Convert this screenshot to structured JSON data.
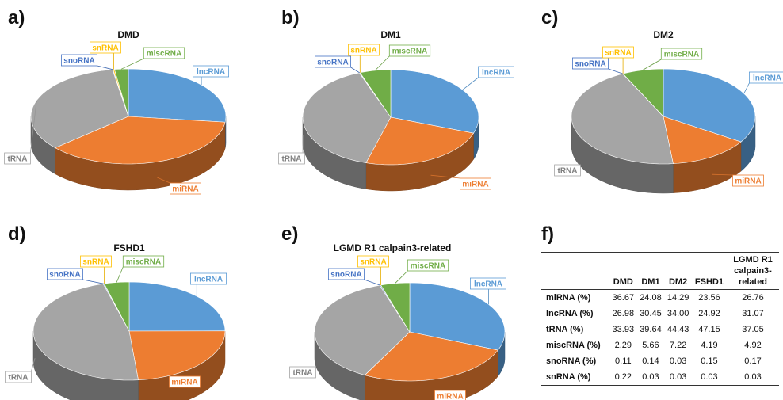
{
  "panel_letters": [
    "a)",
    "b)",
    "c)",
    "d)",
    "e)",
    "f)"
  ],
  "colors": {
    "miRNA": "#ed7d31",
    "lncRNA": "#5b9bd5",
    "tRNA": "#a5a5a5",
    "miscRNA": "#70ad47",
    "snoRNA": "#4472c4",
    "snRNA": "#ffc000"
  },
  "chart_data": [
    {
      "type": "pie",
      "title": "DMD",
      "categories": [
        "miRNA",
        "lncRNA",
        "tRNA",
        "miscRNA",
        "snoRNA",
        "snRNA"
      ],
      "values": [
        36.67,
        26.98,
        33.93,
        2.29,
        0.11,
        0.22
      ]
    },
    {
      "type": "pie",
      "title": "DM1",
      "categories": [
        "miRNA",
        "lncRNA",
        "tRNA",
        "miscRNA",
        "snoRNA",
        "snRNA"
      ],
      "values": [
        24.08,
        30.45,
        39.64,
        5.66,
        0.14,
        0.03
      ]
    },
    {
      "type": "pie",
      "title": "DM2",
      "categories": [
        "miRNA",
        "lncRNA",
        "tRNA",
        "miscRNA",
        "snoRNA",
        "snRNA"
      ],
      "values": [
        14.29,
        34.0,
        44.43,
        7.22,
        0.03,
        0.03
      ]
    },
    {
      "type": "pie",
      "title": "FSHD1",
      "categories": [
        "miRNA",
        "lncRNA",
        "tRNA",
        "miscRNA",
        "snoRNA",
        "snRNA"
      ],
      "values": [
        23.56,
        24.92,
        47.15,
        4.19,
        0.15,
        0.03
      ]
    },
    {
      "type": "pie",
      "title": "LGMD R1 calpain3-related",
      "categories": [
        "miRNA",
        "lncRNA",
        "tRNA",
        "miscRNA",
        "snoRNA",
        "snRNA"
      ],
      "values": [
        26.76,
        31.07,
        37.05,
        4.92,
        0.17,
        0.03
      ]
    },
    {
      "type": "table",
      "columns": [
        "",
        "DMD",
        "DM1",
        "DM2",
        "FSHD1",
        "LGMD R1 calpain3-related"
      ],
      "rows": [
        {
          "label": "miRNA (%)",
          "values": [
            "36.67",
            "24.08",
            "14.29",
            "23.56",
            "26.76"
          ]
        },
        {
          "label": "lncRNA (%)",
          "values": [
            "26.98",
            "30.45",
            "34.00",
            "24.92",
            "31.07"
          ]
        },
        {
          "label": "tRNA (%)",
          "values": [
            "33.93",
            "39.64",
            "44.43",
            "47.15",
            "37.05"
          ]
        },
        {
          "label": "miscRNA (%)",
          "values": [
            "2.29",
            "5.66",
            "7.22",
            "4.19",
            "4.92"
          ]
        },
        {
          "label": "snoRNA (%)",
          "values": [
            "0.11",
            "0.14",
            "0.03",
            "0.15",
            "0.17"
          ]
        },
        {
          "label": "snRNA (%)",
          "values": [
            "0.22",
            "0.03",
            "0.03",
            "0.03",
            "0.03"
          ]
        }
      ]
    }
  ]
}
